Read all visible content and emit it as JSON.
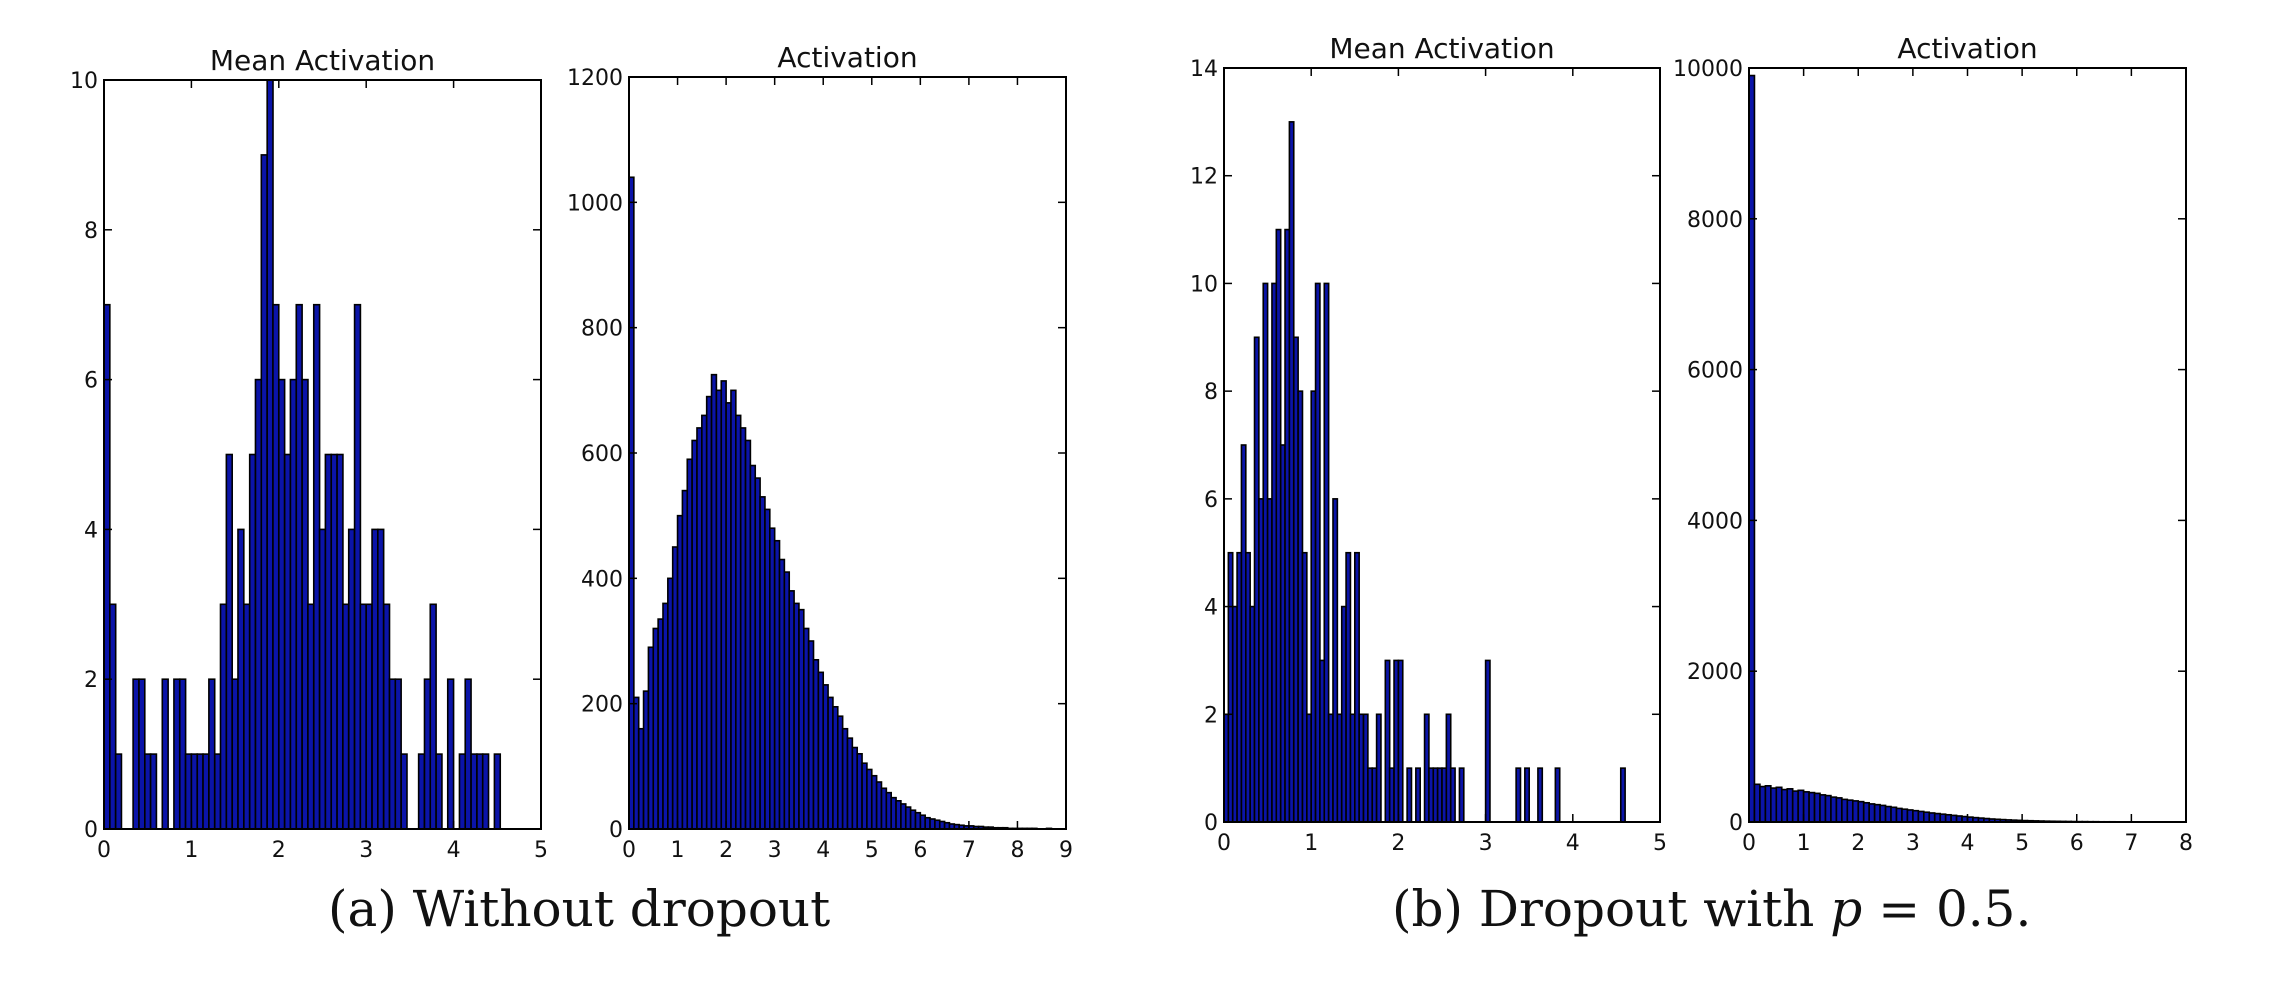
{
  "captions": {
    "a": "(a) Without dropout",
    "b_prefix": "(b) Dropout with ",
    "b_var": "p",
    "b_suffix": " = 0.5."
  },
  "colors": {
    "bar_fill": "#0b14a8",
    "bar_edge": "#000000",
    "axis": "#000000"
  },
  "chart_data": [
    {
      "type": "bar",
      "title": "Mean Activation",
      "xlim": [
        0,
        5
      ],
      "ylim": [
        0,
        10
      ],
      "xticks": [
        0,
        1,
        2,
        3,
        4,
        5
      ],
      "yticks": [
        0,
        2,
        4,
        6,
        8,
        10
      ],
      "bin_width": 0.0667,
      "bins": [
        [
          0,
          7
        ],
        [
          0.067,
          3
        ],
        [
          0.133,
          1
        ],
        [
          0.333,
          2
        ],
        [
          0.4,
          2
        ],
        [
          0.467,
          1
        ],
        [
          0.533,
          1
        ],
        [
          0.667,
          2
        ],
        [
          0.8,
          2
        ],
        [
          0.867,
          2
        ],
        [
          0.933,
          1
        ],
        [
          1.0,
          1
        ],
        [
          1.067,
          1
        ],
        [
          1.133,
          1
        ],
        [
          1.2,
          2
        ],
        [
          1.267,
          1
        ],
        [
          1.333,
          3
        ],
        [
          1.4,
          5
        ],
        [
          1.467,
          2
        ],
        [
          1.533,
          4
        ],
        [
          1.6,
          3
        ],
        [
          1.667,
          5
        ],
        [
          1.733,
          6
        ],
        [
          1.8,
          9
        ],
        [
          1.867,
          10
        ],
        [
          1.933,
          7
        ],
        [
          2.0,
          6
        ],
        [
          2.067,
          5
        ],
        [
          2.133,
          6
        ],
        [
          2.2,
          7
        ],
        [
          2.267,
          6
        ],
        [
          2.333,
          3
        ],
        [
          2.4,
          7
        ],
        [
          2.467,
          4
        ],
        [
          2.533,
          5
        ],
        [
          2.6,
          5
        ],
        [
          2.667,
          5
        ],
        [
          2.733,
          3
        ],
        [
          2.8,
          4
        ],
        [
          2.867,
          7
        ],
        [
          2.933,
          3
        ],
        [
          3.0,
          3
        ],
        [
          3.067,
          4
        ],
        [
          3.133,
          4
        ],
        [
          3.2,
          3
        ],
        [
          3.267,
          2
        ],
        [
          3.333,
          2
        ],
        [
          3.4,
          1
        ],
        [
          3.6,
          1
        ],
        [
          3.667,
          2
        ],
        [
          3.733,
          3
        ],
        [
          3.8,
          1
        ],
        [
          3.933,
          2
        ],
        [
          4.067,
          1
        ],
        [
          4.133,
          2
        ],
        [
          4.2,
          1
        ],
        [
          4.267,
          1
        ],
        [
          4.333,
          1
        ],
        [
          4.467,
          1
        ]
      ]
    },
    {
      "type": "bar",
      "title": "Activation",
      "xlim": [
        0,
        9
      ],
      "ylim": [
        0,
        1200
      ],
      "xticks": [
        0,
        1,
        2,
        3,
        4,
        5,
        6,
        7,
        8,
        9
      ],
      "yticks": [
        0,
        200,
        400,
        600,
        800,
        1000,
        1200
      ],
      "bin_width": 0.1,
      "values": [
        1040,
        210,
        160,
        220,
        290,
        320,
        335,
        360,
        400,
        450,
        500,
        540,
        590,
        620,
        640,
        660,
        690,
        725,
        700,
        715,
        680,
        700,
        660,
        640,
        620,
        580,
        560,
        530,
        510,
        480,
        460,
        430,
        410,
        380,
        360,
        350,
        320,
        300,
        270,
        250,
        230,
        210,
        195,
        180,
        160,
        145,
        130,
        120,
        105,
        95,
        85,
        75,
        65,
        58,
        50,
        45,
        40,
        35,
        30,
        26,
        22,
        18,
        16,
        14,
        12,
        10,
        8,
        7,
        6,
        5,
        5,
        4,
        4,
        3,
        3,
        2,
        2,
        2,
        1,
        1,
        1,
        1,
        1,
        1,
        0,
        0,
        1
      ]
    },
    {
      "type": "bar",
      "title": "Mean Activation",
      "xlim": [
        0,
        5
      ],
      "ylim": [
        0,
        14
      ],
      "xticks": [
        0,
        1,
        2,
        3,
        4,
        5
      ],
      "yticks": [
        0,
        2,
        4,
        6,
        8,
        10,
        12,
        14
      ],
      "bin_width": 0.05,
      "bins": [
        [
          0,
          2
        ],
        [
          0.05,
          5
        ],
        [
          0.1,
          4
        ],
        [
          0.15,
          5
        ],
        [
          0.2,
          7
        ],
        [
          0.25,
          5
        ],
        [
          0.3,
          4
        ],
        [
          0.35,
          9
        ],
        [
          0.4,
          6
        ],
        [
          0.45,
          10
        ],
        [
          0.5,
          6
        ],
        [
          0.55,
          10
        ],
        [
          0.6,
          11
        ],
        [
          0.65,
          7
        ],
        [
          0.7,
          11
        ],
        [
          0.75,
          13
        ],
        [
          0.8,
          9
        ],
        [
          0.85,
          8
        ],
        [
          0.9,
          5
        ],
        [
          0.95,
          2
        ],
        [
          1.0,
          8
        ],
        [
          1.05,
          10
        ],
        [
          1.1,
          3
        ],
        [
          1.15,
          10
        ],
        [
          1.2,
          2
        ],
        [
          1.25,
          6
        ],
        [
          1.3,
          2
        ],
        [
          1.35,
          4
        ],
        [
          1.4,
          5
        ],
        [
          1.45,
          2
        ],
        [
          1.5,
          5
        ],
        [
          1.55,
          2
        ],
        [
          1.6,
          2
        ],
        [
          1.65,
          1
        ],
        [
          1.7,
          1
        ],
        [
          1.75,
          2
        ],
        [
          1.85,
          3
        ],
        [
          1.9,
          1
        ],
        [
          1.95,
          3
        ],
        [
          2.0,
          3
        ],
        [
          2.1,
          1
        ],
        [
          2.2,
          1
        ],
        [
          2.3,
          2
        ],
        [
          2.35,
          1
        ],
        [
          2.4,
          1
        ],
        [
          2.45,
          1
        ],
        [
          2.5,
          1
        ],
        [
          2.55,
          2
        ],
        [
          2.6,
          1
        ],
        [
          2.7,
          1
        ],
        [
          3.0,
          3
        ],
        [
          3.35,
          1
        ],
        [
          3.45,
          1
        ],
        [
          3.6,
          1
        ],
        [
          3.8,
          1
        ],
        [
          4.55,
          1
        ]
      ]
    },
    {
      "type": "bar",
      "title": "Activation",
      "xlim": [
        0,
        8
      ],
      "ylim": [
        0,
        10000
      ],
      "xticks": [
        0,
        1,
        2,
        3,
        4,
        5,
        6,
        7,
        8
      ],
      "yticks": [
        0,
        2000,
        4000,
        6000,
        8000,
        10000
      ],
      "bin_width": 0.1,
      "values": [
        9900,
        500,
        470,
        480,
        450,
        460,
        430,
        440,
        410,
        420,
        400,
        390,
        380,
        360,
        350,
        330,
        320,
        300,
        290,
        280,
        270,
        255,
        240,
        230,
        220,
        205,
        195,
        180,
        170,
        160,
        150,
        140,
        130,
        120,
        112,
        104,
        96,
        88,
        80,
        72,
        65,
        58,
        52,
        46,
        40,
        36,
        32,
        28,
        25,
        22,
        19,
        17,
        15,
        13,
        11,
        10,
        9,
        8,
        7,
        6,
        5,
        5,
        4,
        4,
        3,
        3,
        3,
        2,
        2,
        2,
        2,
        1,
        1,
        1,
        1,
        1,
        1,
        1
      ]
    }
  ]
}
